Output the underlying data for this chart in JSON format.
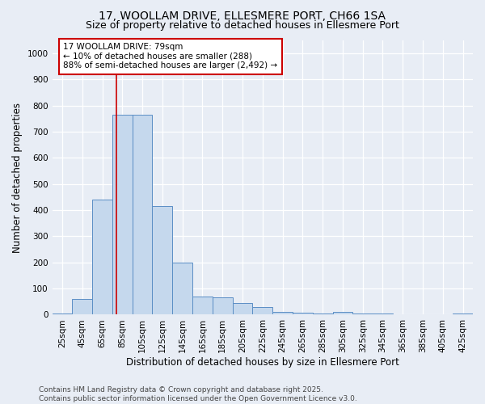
{
  "title_line1": "17, WOOLLAM DRIVE, ELLESMERE PORT, CH66 1SA",
  "title_line2": "Size of property relative to detached houses in Ellesmere Port",
  "xlabel": "Distribution of detached houses by size in Ellesmere Port",
  "ylabel": "Number of detached properties",
  "footnote": "Contains HM Land Registry data © Crown copyright and database right 2025.\nContains public sector information licensed under the Open Government Licence v3.0.",
  "bin_centers": [
    25,
    45,
    65,
    85,
    105,
    125,
    145,
    165,
    185,
    205,
    225,
    245,
    265,
    285,
    305,
    325,
    345,
    365,
    385,
    405,
    425
  ],
  "bin_width": 20,
  "bar_values": [
    5,
    60,
    440,
    765,
    765,
    415,
    200,
    70,
    65,
    45,
    30,
    12,
    8,
    5,
    10,
    3,
    3,
    2,
    0,
    2,
    5
  ],
  "bar_color": "#c5d8ed",
  "bar_edge_color": "#5b8ec5",
  "property_size": 79,
  "red_line_color": "#cc0000",
  "annotation_text_line1": "17 WOOLLAM DRIVE: 79sqm",
  "annotation_text_line2": "← 10% of detached houses are smaller (288)",
  "annotation_text_line3": "88% of semi-detached houses are larger (2,492) →",
  "annotation_box_edge_color": "#cc0000",
  "annotation_box_fill": "#ffffff",
  "ylim": [
    0,
    1050
  ],
  "yticks": [
    0,
    100,
    200,
    300,
    400,
    500,
    600,
    700,
    800,
    900,
    1000
  ],
  "xlim_left": 15,
  "xlim_right": 435,
  "background_color": "#e8edf5",
  "plot_bg_color": "#e8edf5",
  "grid_color": "#ffffff",
  "title_fontsize": 10,
  "subtitle_fontsize": 9,
  "axis_label_fontsize": 8.5,
  "tick_fontsize": 7.5,
  "annotation_fontsize": 7.5,
  "footnote_fontsize": 6.5
}
